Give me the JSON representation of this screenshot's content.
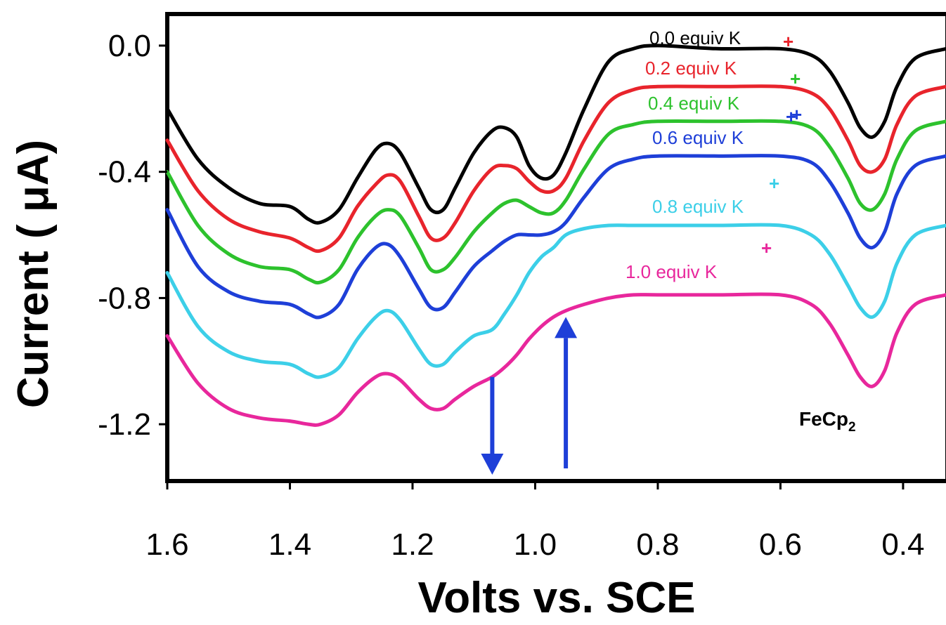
{
  "chart_data": {
    "type": "line",
    "xlabel": "Volts vs. SCE",
    "ylabel": "Current  ( μA)",
    "xlim": [
      1.6,
      0.33
    ],
    "ylim": [
      -1.38,
      0.1
    ],
    "x_reversed": true,
    "x_ticks": [
      "1.6",
      "1.4",
      "1.2",
      "1.0",
      "0.8",
      "0.6",
      "0.4"
    ],
    "x_tick_values": [
      1.6,
      1.4,
      1.2,
      1.0,
      0.8,
      0.6,
      0.4
    ],
    "y_ticks": [
      "0.0",
      "-0.4",
      "-0.8",
      "-1.2"
    ],
    "y_tick_values": [
      0.0,
      -0.4,
      -0.8,
      -1.2
    ],
    "grid": false,
    "x": [
      1.6,
      1.55,
      1.5,
      1.45,
      1.4,
      1.37,
      1.35,
      1.32,
      1.29,
      1.26,
      1.24,
      1.22,
      1.19,
      1.17,
      1.15,
      1.13,
      1.1,
      1.07,
      1.05,
      1.03,
      1.01,
      0.99,
      0.97,
      0.95,
      0.92,
      0.88,
      0.84,
      0.8,
      0.7,
      0.6,
      0.55,
      0.52,
      0.49,
      0.47,
      0.45,
      0.43,
      0.41,
      0.38,
      0.33
    ],
    "series": [
      {
        "name": "0.0 equiv K",
        "color": "#000000",
        "plus_color": "#e8242c",
        "values": [
          -0.2,
          -0.36,
          -0.45,
          -0.5,
          -0.51,
          -0.55,
          -0.56,
          -0.52,
          -0.42,
          -0.33,
          -0.31,
          -0.34,
          -0.45,
          -0.52,
          -0.52,
          -0.45,
          -0.34,
          -0.27,
          -0.26,
          -0.29,
          -0.38,
          -0.42,
          -0.41,
          -0.34,
          -0.2,
          -0.05,
          -0.01,
          0.0,
          -0.01,
          -0.01,
          -0.03,
          -0.08,
          -0.18,
          -0.26,
          -0.29,
          -0.24,
          -0.13,
          -0.04,
          -0.01
        ]
      },
      {
        "name": "0.2 equiv K",
        "color": "#e8242c",
        "plus_color": "#2dc22d",
        "values": [
          -0.3,
          -0.46,
          -0.55,
          -0.59,
          -0.61,
          -0.64,
          -0.65,
          -0.61,
          -0.51,
          -0.44,
          -0.41,
          -0.43,
          -0.54,
          -0.61,
          -0.61,
          -0.56,
          -0.46,
          -0.39,
          -0.38,
          -0.39,
          -0.43,
          -0.46,
          -0.46,
          -0.42,
          -0.3,
          -0.18,
          -0.14,
          -0.13,
          -0.13,
          -0.13,
          -0.15,
          -0.2,
          -0.3,
          -0.38,
          -0.4,
          -0.36,
          -0.25,
          -0.16,
          -0.13
        ]
      },
      {
        "name": "0.4 equiv K",
        "color": "#2dc22d",
        "plus_color": "#1e3fd8",
        "values": [
          -0.4,
          -0.57,
          -0.66,
          -0.7,
          -0.71,
          -0.74,
          -0.75,
          -0.71,
          -0.61,
          -0.54,
          -0.52,
          -0.54,
          -0.64,
          -0.71,
          -0.71,
          -0.67,
          -0.59,
          -0.53,
          -0.5,
          -0.49,
          -0.51,
          -0.53,
          -0.53,
          -0.49,
          -0.39,
          -0.28,
          -0.25,
          -0.24,
          -0.24,
          -0.24,
          -0.26,
          -0.32,
          -0.42,
          -0.5,
          -0.52,
          -0.47,
          -0.36,
          -0.27,
          -0.24
        ]
      },
      {
        "name": "0.6 equiv K",
        "color": "#1e3fd8",
        "plus_color": "#1e3fd8",
        "values": [
          -0.52,
          -0.7,
          -0.78,
          -0.81,
          -0.82,
          -0.85,
          -0.86,
          -0.82,
          -0.71,
          -0.64,
          -0.63,
          -0.67,
          -0.77,
          -0.83,
          -0.83,
          -0.78,
          -0.7,
          -0.65,
          -0.62,
          -0.6,
          -0.6,
          -0.6,
          -0.59,
          -0.56,
          -0.48,
          -0.39,
          -0.36,
          -0.35,
          -0.35,
          -0.35,
          -0.37,
          -0.43,
          -0.53,
          -0.61,
          -0.64,
          -0.59,
          -0.47,
          -0.38,
          -0.35
        ]
      },
      {
        "name": "0.8 equiv K",
        "color": "#3ccfe8",
        "plus_color": "#3ccfe8",
        "values": [
          -0.72,
          -0.89,
          -0.97,
          -1.0,
          -1.01,
          -1.04,
          -1.05,
          -1.02,
          -0.93,
          -0.86,
          -0.84,
          -0.87,
          -0.96,
          -1.01,
          -1.01,
          -0.97,
          -0.92,
          -0.9,
          -0.85,
          -0.79,
          -0.72,
          -0.67,
          -0.64,
          -0.6,
          -0.58,
          -0.57,
          -0.57,
          -0.57,
          -0.57,
          -0.57,
          -0.6,
          -0.66,
          -0.76,
          -0.83,
          -0.86,
          -0.81,
          -0.69,
          -0.6,
          -0.57
        ]
      },
      {
        "name": "1.0 equiv K",
        "color": "#e8279c",
        "plus_color": "#e8279c",
        "values": [
          -0.92,
          -1.07,
          -1.15,
          -1.18,
          -1.19,
          -1.2,
          -1.2,
          -1.17,
          -1.1,
          -1.05,
          -1.04,
          -1.06,
          -1.12,
          -1.15,
          -1.15,
          -1.12,
          -1.08,
          -1.05,
          -1.02,
          -0.98,
          -0.93,
          -0.89,
          -0.86,
          -0.84,
          -0.82,
          -0.8,
          -0.79,
          -0.79,
          -0.79,
          -0.79,
          -0.82,
          -0.88,
          -0.98,
          -1.05,
          -1.08,
          -1.03,
          -0.91,
          -0.82,
          -0.79
        ]
      }
    ],
    "plus_sign": "+",
    "annotation_main": "FeCp",
    "annotation_sub": "2",
    "arrows": [
      {
        "x": 1.07,
        "from": -1.05,
        "to": -1.36,
        "direction": "down",
        "color": "#1e3fd8"
      },
      {
        "x": 0.95,
        "from": -1.34,
        "to": -0.86,
        "direction": "up",
        "color": "#1e3fd8"
      }
    ]
  }
}
